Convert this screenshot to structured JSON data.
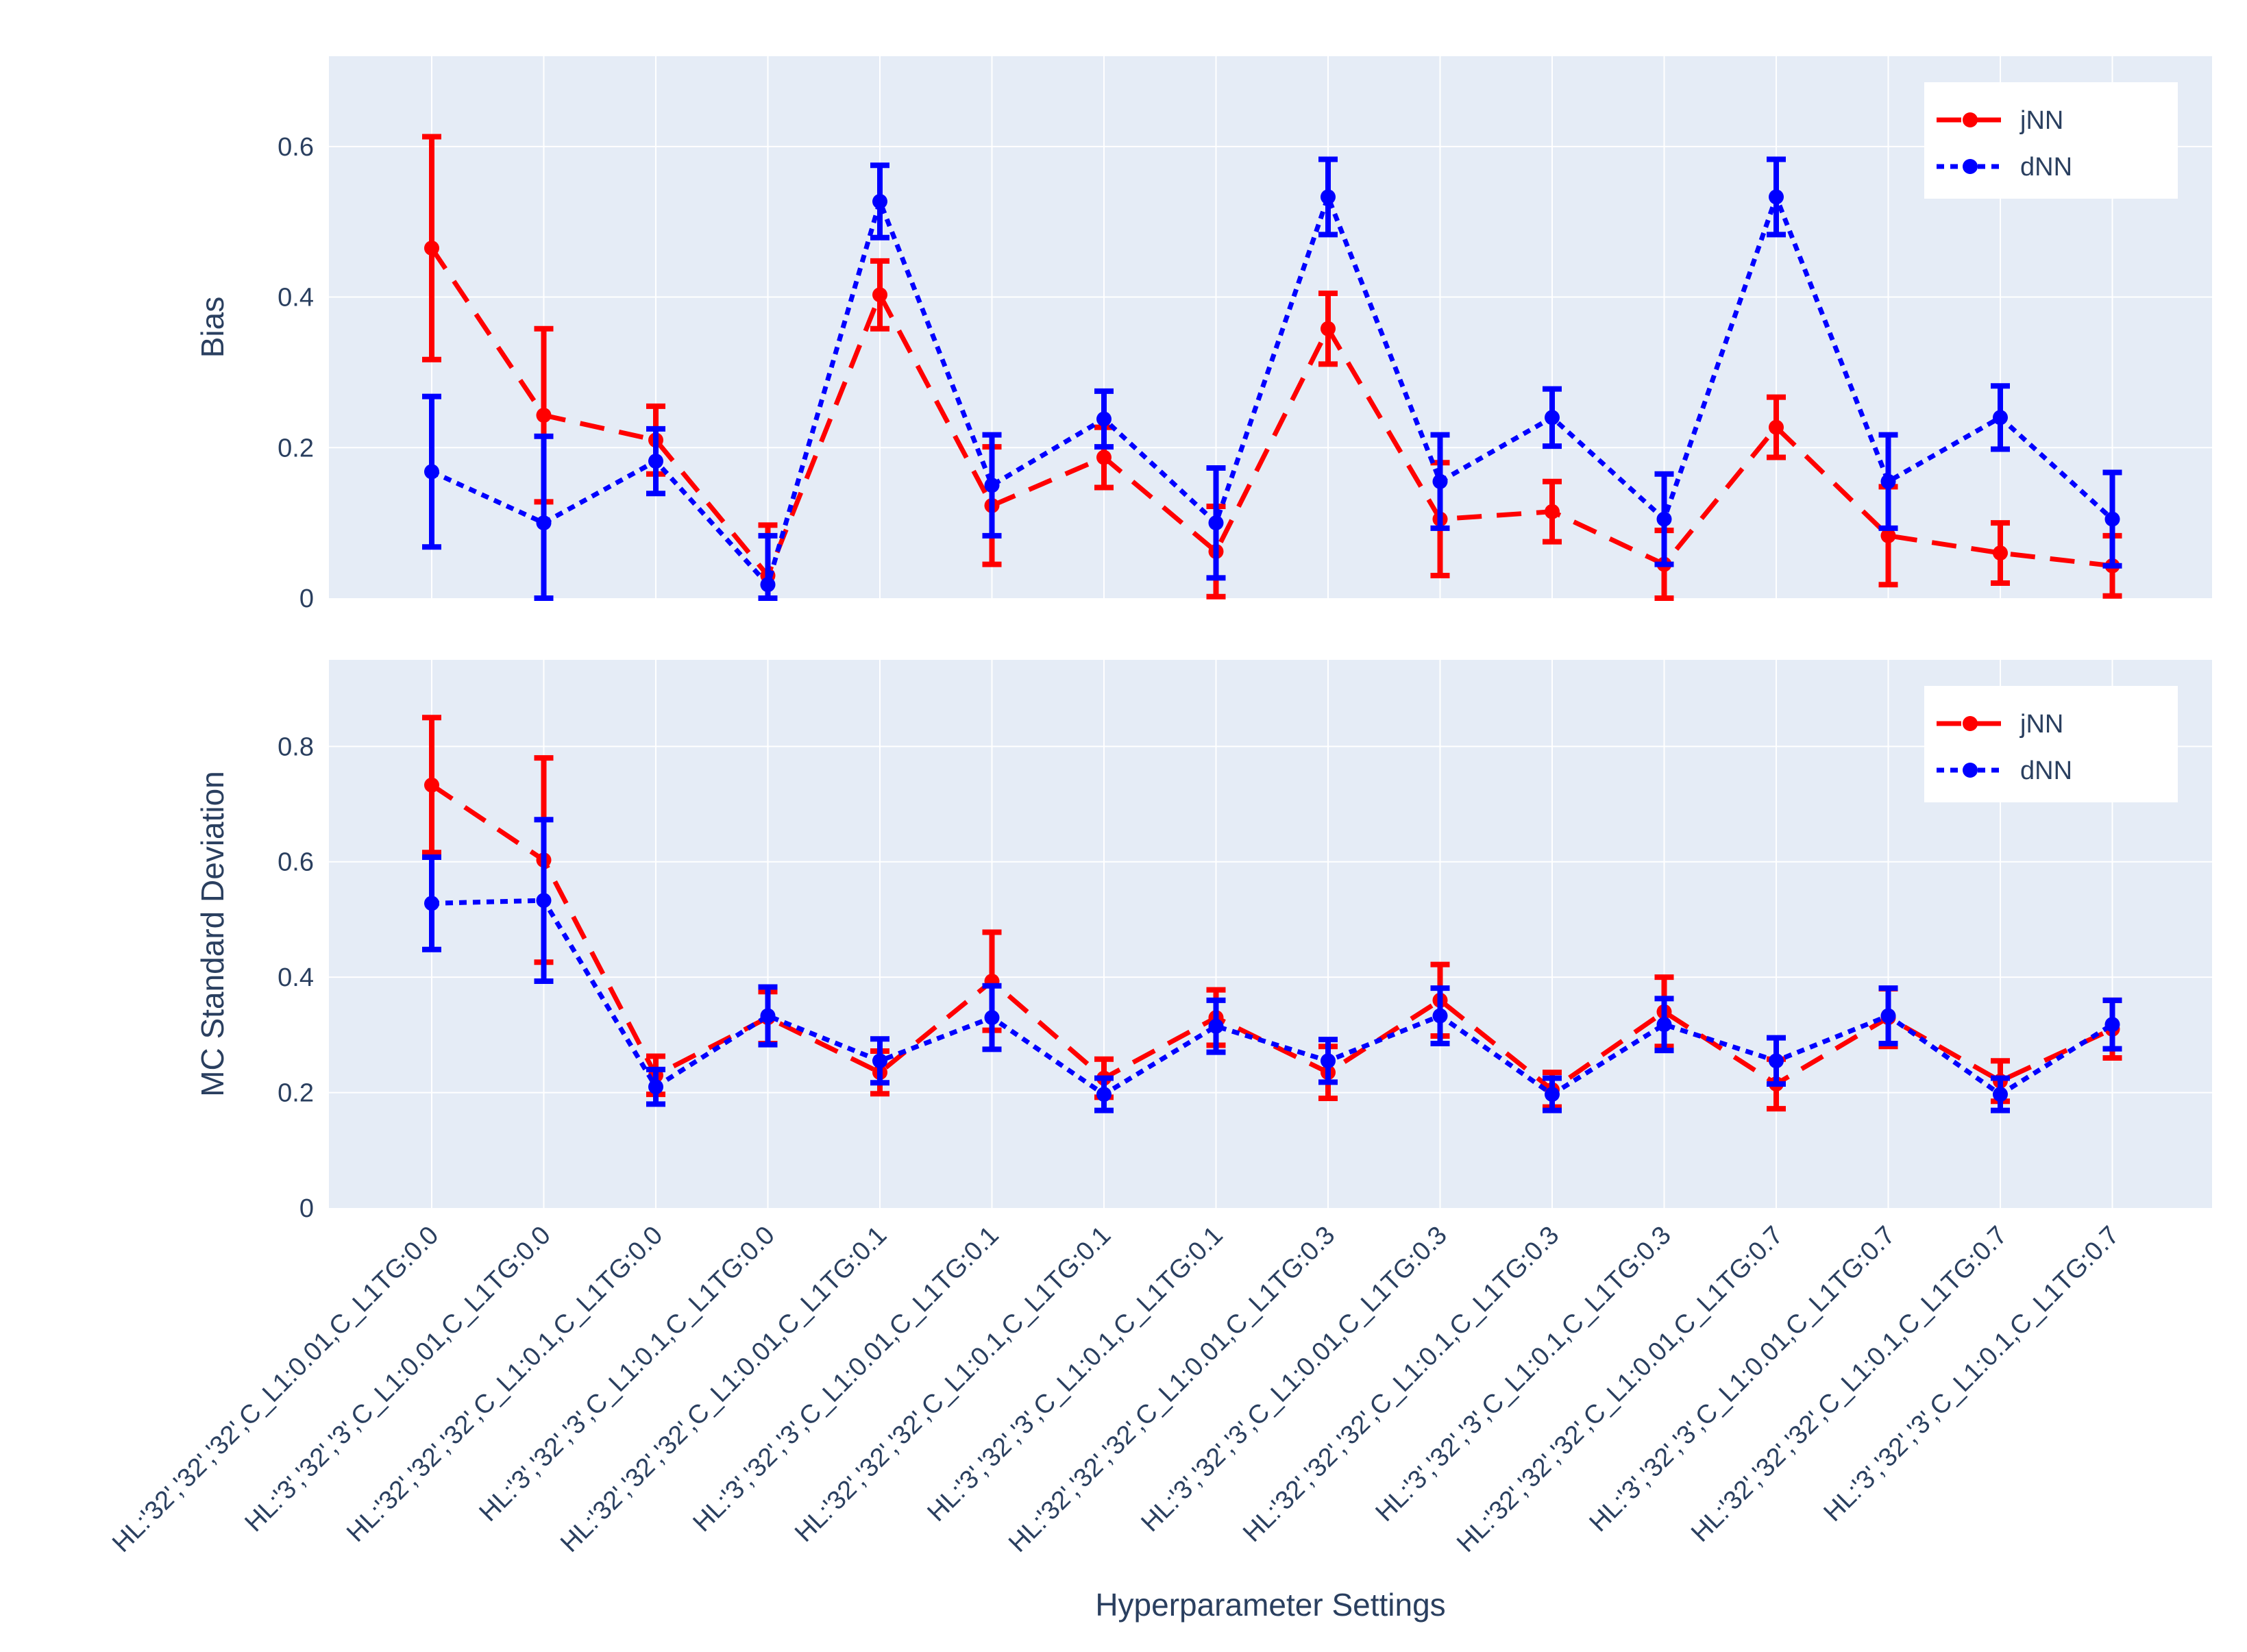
{
  "chart_data": {
    "type": "line",
    "xlabel": "Hyperparameter Settings",
    "categories": [
      "HL:'32','32','32',C_L1:0.01,C_L1TG:0.0",
      "HL:'3','32','3',C_L1:0.01,C_L1TG:0.0",
      "HL:'32','32','32',C_L1:0.1,C_L1TG:0.0",
      "HL:'3','32','3',C_L1:0.1,C_L1TG:0.0",
      "HL:'32','32','32',C_L1:0.01,C_L1TG:0.1",
      "HL:'3','32','3',C_L1:0.01,C_L1TG:0.1",
      "HL:'32','32','32',C_L1:0.1,C_L1TG:0.1",
      "HL:'3','32','3',C_L1:0.1,C_L1TG:0.1",
      "HL:'32','32','32',C_L1:0.01,C_L1TG:0.3",
      "HL:'3','32','3',C_L1:0.01,C_L1TG:0.3",
      "HL:'32','32','32',C_L1:0.1,C_L1TG:0.3",
      "HL:'3','32','3',C_L1:0.1,C_L1TG:0.3",
      "HL:'32','32','32',C_L1:0.01,C_L1TG:0.7",
      "HL:'3','32','3',C_L1:0.01,C_L1TG:0.7",
      "HL:'32','32','32',C_L1:0.1,C_L1TG:0.7",
      "HL:'3','32','3',C_L1:0.1,C_L1TG:0.7"
    ],
    "subplots": [
      {
        "ylabel": "Bias",
        "ylim": [
          0,
          0.72
        ],
        "yticks": [
          0,
          0.2,
          0.4,
          0.6
        ],
        "ytick_labels": [
          "0",
          "0.2",
          "0.4",
          "0.6"
        ],
        "legend_position": "top-right",
        "series": [
          {
            "name": "jNN",
            "color": "#ff0000",
            "dash": "dash",
            "values": [
              0.465,
              0.243,
              0.21,
              0.03,
              0.403,
              0.123,
              0.187,
              0.062,
              0.358,
              0.105,
              0.115,
              0.045,
              0.227,
              0.083,
              0.06,
              0.043
            ],
            "errors": [
              0.148,
              0.115,
              0.045,
              0.067,
              0.045,
              0.078,
              0.04,
              0.06,
              0.047,
              0.075,
              0.04,
              0.045,
              0.04,
              0.065,
              0.04,
              0.04
            ]
          },
          {
            "name": "dNN",
            "color": "#0000ff",
            "dash": "dot",
            "values": [
              0.168,
              0.1,
              0.182,
              0.018,
              0.527,
              0.15,
              0.238,
              0.1,
              0.533,
              0.155,
              0.24,
              0.105,
              0.533,
              0.155,
              0.24,
              0.105
            ],
            "errors": [
              0.1,
              0.115,
              0.043,
              0.065,
              0.048,
              0.067,
              0.037,
              0.073,
              0.05,
              0.062,
              0.038,
              0.06,
              0.05,
              0.062,
              0.042,
              0.062
            ]
          }
        ]
      },
      {
        "ylabel": "MC Standard Deviation",
        "ylim": [
          0,
          0.95
        ],
        "yticks": [
          0,
          0.2,
          0.4,
          0.6,
          0.8
        ],
        "ytick_labels": [
          "0",
          "0.2",
          "0.4",
          "0.6",
          "0.8"
        ],
        "legend_position": "top-right",
        "series": [
          {
            "name": "jNN",
            "color": "#ff0000",
            "dash": "dash",
            "values": [
              0.733,
              0.603,
              0.23,
              0.33,
              0.235,
              0.393,
              0.225,
              0.33,
              0.235,
              0.36,
              0.205,
              0.34,
              0.215,
              0.33,
              0.22,
              0.31
            ],
            "errors": [
              0.117,
              0.177,
              0.033,
              0.045,
              0.037,
              0.085,
              0.033,
              0.048,
              0.045,
              0.062,
              0.03,
              0.06,
              0.043,
              0.05,
              0.035,
              0.05
            ]
          },
          {
            "name": "dNN",
            "color": "#0000ff",
            "dash": "dot",
            "values": [
              0.528,
              0.533,
              0.21,
              0.333,
              0.255,
              0.33,
              0.197,
              0.315,
              0.255,
              0.333,
              0.197,
              0.318,
              0.255,
              0.333,
              0.197,
              0.318
            ],
            "errors": [
              0.08,
              0.14,
              0.03,
              0.05,
              0.038,
              0.055,
              0.028,
              0.045,
              0.037,
              0.048,
              0.028,
              0.045,
              0.04,
              0.048,
              0.028,
              0.042
            ]
          }
        ]
      }
    ]
  }
}
